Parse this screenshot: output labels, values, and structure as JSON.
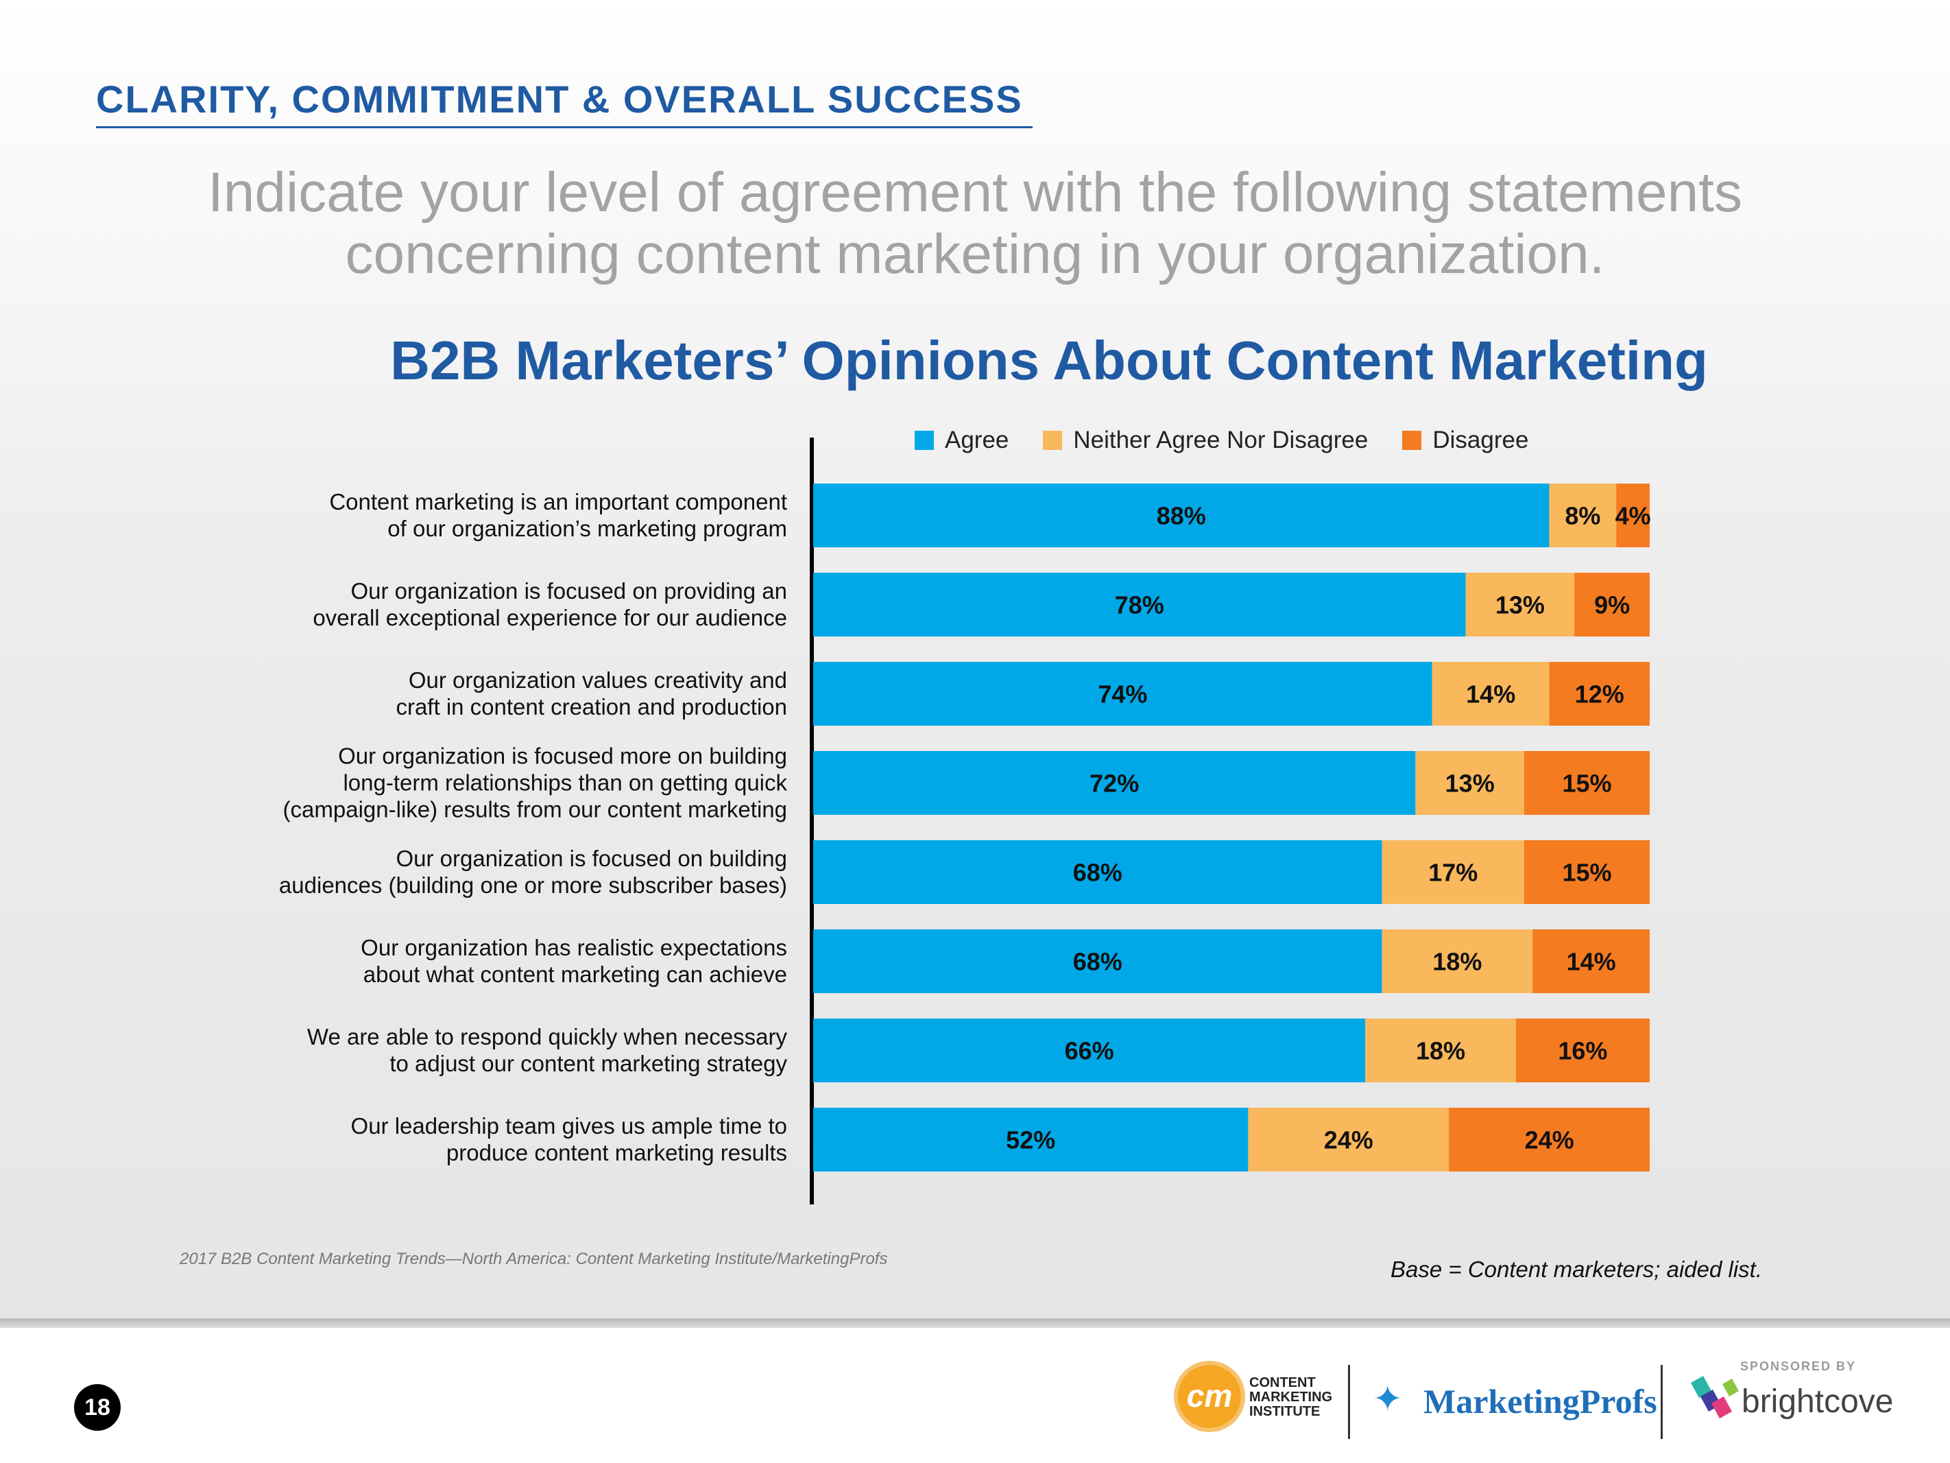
{
  "header": {
    "section_title": "CLARITY, COMMITMENT & OVERALL SUCCESS",
    "question_line1": "Indicate your level of agreement with the following statements",
    "question_line2": "concerning content marketing in your organization."
  },
  "chart_data": {
    "type": "bar",
    "orientation": "horizontal",
    "stacked": true,
    "title": "B2B Marketers’ Opinions About Content Marketing",
    "xlim": [
      0,
      100
    ],
    "unit": "%",
    "legend_position": "top",
    "categories": [
      [
        "Content marketing is an important component",
        "of our organization’s marketing program"
      ],
      [
        "Our organization is focused on providing an",
        "overall exceptional experience for our audience"
      ],
      [
        "Our organization values creativity and",
        "craft in content creation and production"
      ],
      [
        "Our organization is focused more on building",
        "long-term relationships than on getting quick",
        "(campaign-like) results from our content marketing"
      ],
      [
        "Our organization is focused on building",
        "audiences (building one or more subscriber bases)"
      ],
      [
        "Our organization has realistic expectations",
        "about what content marketing can achieve"
      ],
      [
        "We are able to respond quickly when necessary",
        "to adjust our content marketing strategy"
      ],
      [
        "Our leadership team gives us ample time to",
        "produce content marketing results"
      ]
    ],
    "series": [
      {
        "name": "Agree",
        "color": "#00a8e8",
        "values": [
          88,
          78,
          74,
          72,
          68,
          68,
          66,
          52
        ]
      },
      {
        "name": "Neither Agree Nor Disagree",
        "color": "#f9b85c",
        "values": [
          8,
          13,
          14,
          13,
          17,
          18,
          18,
          24
        ]
      },
      {
        "name": "Disagree",
        "color": "#f47b20",
        "values": [
          4,
          9,
          12,
          15,
          15,
          14,
          16,
          24
        ]
      }
    ]
  },
  "notes": {
    "source": "2017 B2B Content Marketing Trends—North America: Content Marketing Institute/MarketingProfs",
    "base": "Base = Content marketers; aided list."
  },
  "footer": {
    "page_number": "18",
    "cmi_mark": "cm",
    "cmi_line1": "CONTENT",
    "cmi_line2": "MARKETING",
    "cmi_line3": "INSTITUTE",
    "marketingprofs": "MarketingProfs",
    "sponsored_by": "SPONSORED BY",
    "brightcove": "brightcove"
  },
  "colors": {
    "title_blue": "#1f5aa3",
    "agree": "#00a8e8",
    "neutral": "#f9b85c",
    "disagree": "#f47b20"
  }
}
